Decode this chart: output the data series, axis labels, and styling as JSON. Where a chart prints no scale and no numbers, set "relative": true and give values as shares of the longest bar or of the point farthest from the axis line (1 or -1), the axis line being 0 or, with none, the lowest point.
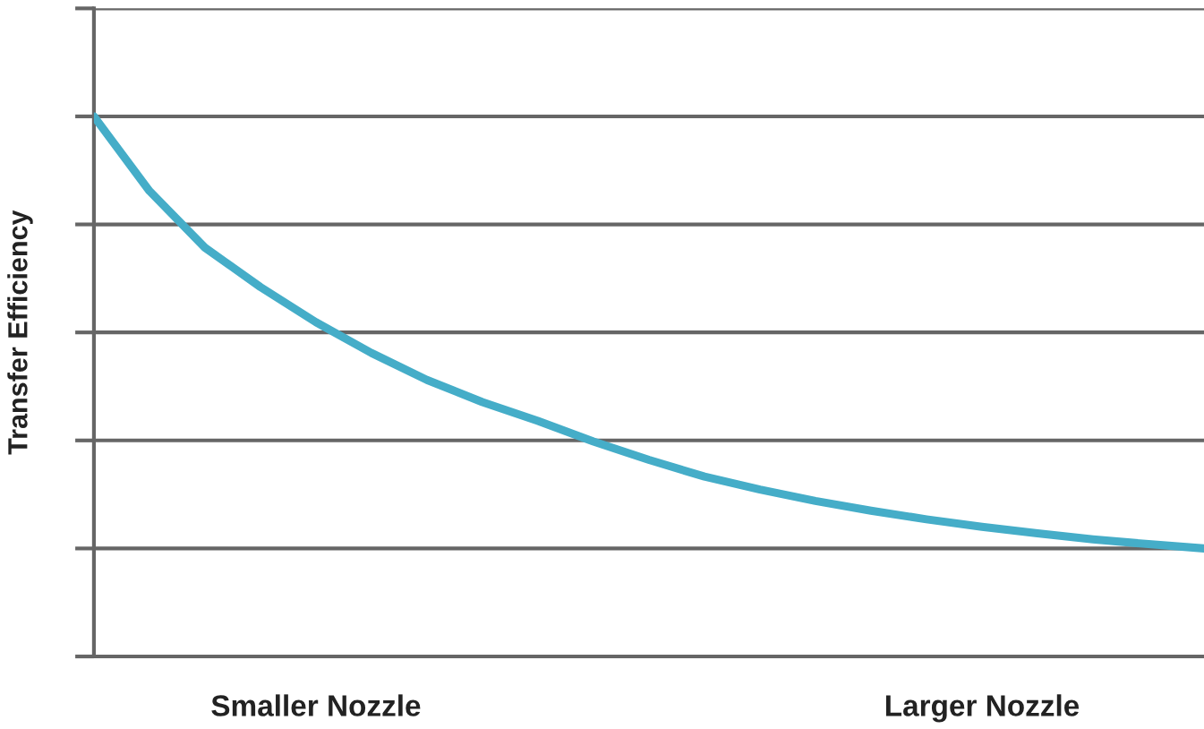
{
  "chart_data": {
    "type": "line",
    "relative": true,
    "ylabel": "Transfer Efficiency",
    "categories": [
      null,
      null,
      null,
      null,
      null,
      null,
      null,
      null,
      null,
      null,
      null,
      null,
      null,
      null,
      null,
      null,
      null,
      null,
      null,
      null,
      null
    ],
    "series": [
      {
        "color": "#45adc8",
        "values": [
          1.0,
          0.862,
          0.757,
          0.684,
          0.619,
          0.562,
          0.512,
          0.471,
          0.436,
          0.398,
          0.364,
          0.333,
          0.309,
          0.288,
          0.27,
          0.254,
          0.24,
          0.228,
          0.217,
          0.208,
          0.2
        ]
      }
    ],
    "annotations": [
      "Smaller Nozzle",
      "Larger Nozzle"
    ],
    "grid": "y",
    "marker": "none",
    "line_style": "solid",
    "legend": false
  }
}
